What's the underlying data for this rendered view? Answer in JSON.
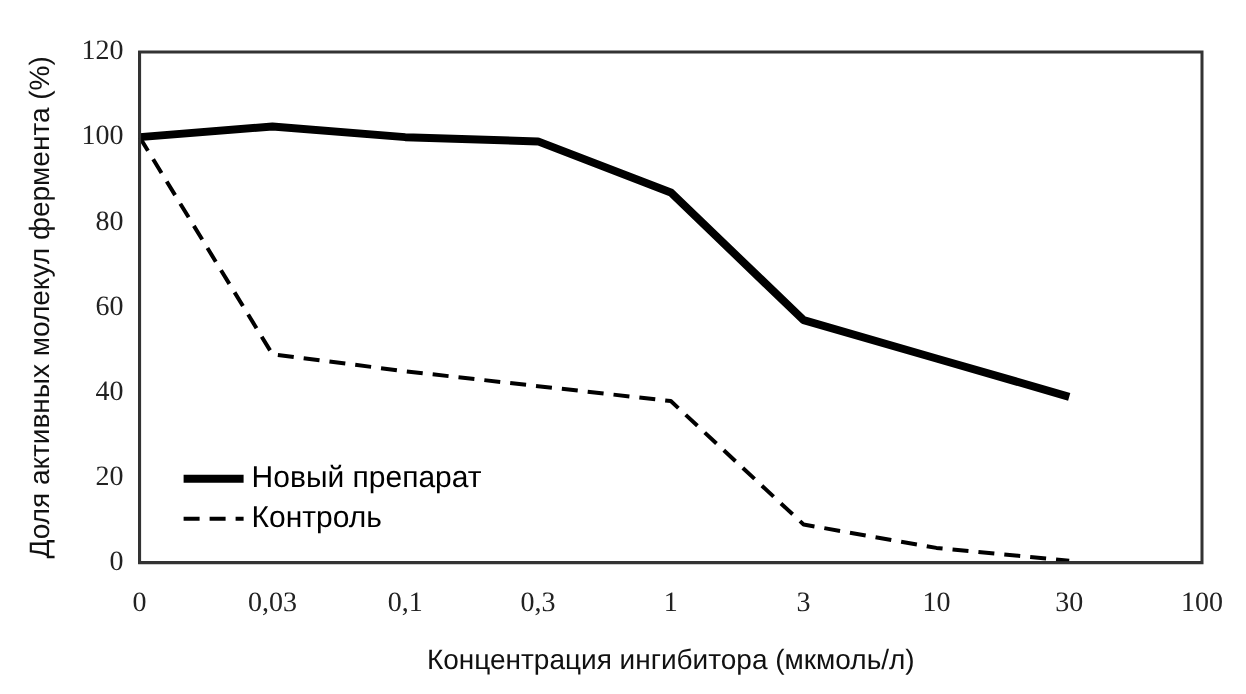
{
  "chart_data": {
    "type": "line",
    "xlabel": "Концентрация ингибитора (мкмоль/л)",
    "ylabel": "Доля активных молекул фермента (%)",
    "categories": [
      "0",
      "0,03",
      "0,1",
      "0,3",
      "1",
      "3",
      "10",
      "30",
      "100"
    ],
    "series": [
      {
        "name": "Новый препарат",
        "color": "#000000",
        "line_style": "solid",
        "values": [
          100,
          102.5,
          100,
          99,
          87,
          57,
          48,
          39,
          null
        ]
      },
      {
        "name": "Контроль",
        "color": "#000000",
        "line_style": "dashed",
        "values": [
          100,
          49,
          45,
          41.5,
          38,
          9,
          3.5,
          0.5,
          null
        ]
      }
    ],
    "ylim": [
      0,
      120
    ],
    "yticks": [
      0,
      20,
      40,
      60,
      80,
      100,
      120
    ],
    "grid": false,
    "legend": "bottom left",
    "marker": "none"
  }
}
